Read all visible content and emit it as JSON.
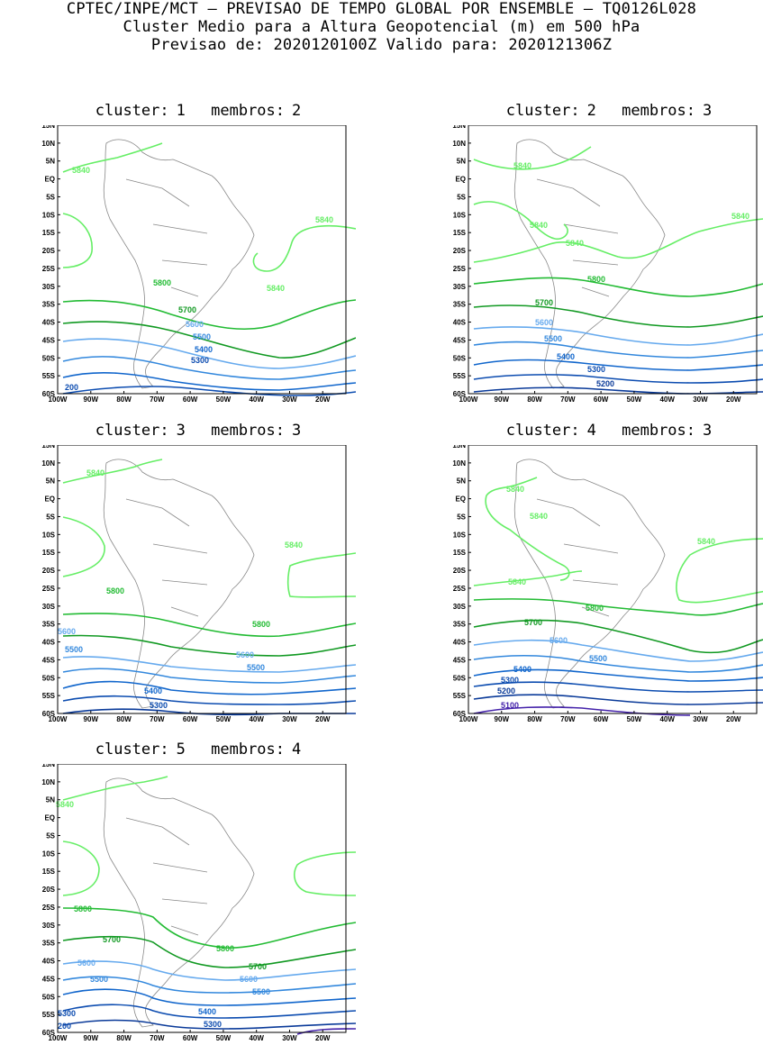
{
  "header": {
    "line1": "CPTEC/INPE/MCT — PREVISAO DE TEMPO GLOBAL POR ENSEMBLE — TQ0126L028",
    "line2": "Cluster Medio para a Altura Geopotencial (m) em 500 hPa",
    "line3": "Previsao de: 2020120100Z    Valido para: 2020121306Z"
  },
  "axes": {
    "lat_labels": [
      "15N",
      "10N",
      "5N",
      "EQ",
      "5S",
      "10S",
      "15S",
      "20S",
      "25S",
      "30S",
      "35S",
      "40S",
      "45S",
      "50S",
      "55S",
      "60S"
    ],
    "lon_labels": [
      "100W",
      "90W",
      "80W",
      "70W",
      "60W",
      "50W",
      "40W",
      "30W",
      "20W"
    ]
  },
  "colors": {
    "c5840": "#66ee66",
    "c5800": "#22bb33",
    "c5700": "#119922",
    "c5600": "#66aaee",
    "c5500": "#3388dd",
    "c5400": "#1166cc",
    "c5300": "#0c4cb0",
    "c5200": "#0a3a99",
    "c5100": "#4422aa",
    "coast": "#888888"
  },
  "clusters": [
    {
      "cluster_label": "cluster:",
      "cluster_num": "1",
      "members_label": "membros:",
      "members_num": "2",
      "labels": [
        "5840",
        "5840",
        "5840",
        "5800",
        "5700",
        "5600",
        "5500",
        "5400",
        "5300",
        "200"
      ]
    },
    {
      "cluster_label": "cluster:",
      "cluster_num": "2",
      "members_label": "membros:",
      "members_num": "3",
      "labels": [
        "5840",
        "5840",
        "5840",
        "5840",
        "5800",
        "5700",
        "5600",
        "5500",
        "5400",
        "5300",
        "5200"
      ]
    },
    {
      "cluster_label": "cluster:",
      "cluster_num": "3",
      "members_label": "membros:",
      "members_num": "3",
      "labels": [
        "5840",
        "5840",
        "5800",
        "5800",
        "5600",
        "5500",
        "5600",
        "5500",
        "5400",
        "5300"
      ]
    },
    {
      "cluster_label": "cluster:",
      "cluster_num": "4",
      "members_label": "membros:",
      "members_num": "3",
      "labels": [
        "5840",
        "5840",
        "5840",
        "5840",
        "5800",
        "5700",
        "5600",
        "5500",
        "5400",
        "5300",
        "5200",
        "5100"
      ]
    },
    {
      "cluster_label": "cluster:",
      "cluster_num": "5",
      "members_label": "membros:",
      "members_num": "4",
      "labels": [
        "5840",
        "5800",
        "5700",
        "5800",
        "5700",
        "5600",
        "5600",
        "5500",
        "5500",
        "5300",
        "5400",
        "5300",
        "200"
      ]
    }
  ]
}
